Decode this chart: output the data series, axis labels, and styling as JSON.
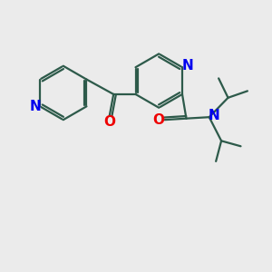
{
  "background_color": "#ebebeb",
  "bond_color": "#2d5a4a",
  "N_color": "#0000ee",
  "O_color": "#ee0000",
  "bond_width": 1.6,
  "font_size": 10,
  "figsize": [
    3.0,
    3.0
  ],
  "dpi": 100,
  "xlim": [
    0,
    10
  ],
  "ylim": [
    0,
    10
  ]
}
